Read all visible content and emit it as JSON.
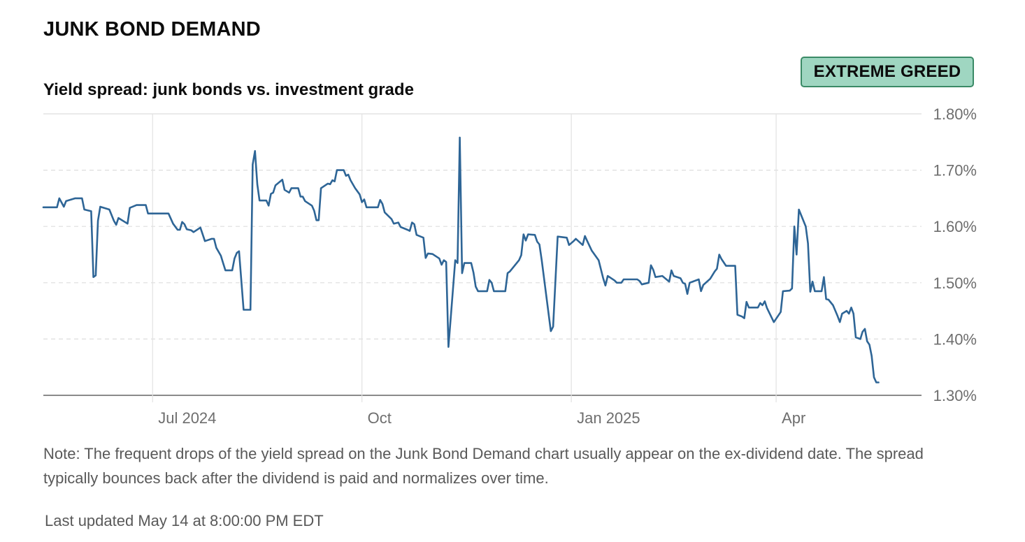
{
  "header": {
    "title": "JUNK BOND DEMAND",
    "badge": "EXTREME GREED",
    "subtitle": "Yield spread: junk bonds vs. investment grade"
  },
  "footer": {
    "note": "Note: The frequent drops of the yield spread on the Junk Bond Demand chart usually appear on the ex-dividend date. The spread typically bounces back after the dividend is paid and normalizes over time.",
    "updated": "Last updated May 14 at 8:00:00 PM EDT"
  },
  "colors": {
    "line": "#2e6596",
    "badge_bg": "#9fd6c1",
    "badge_border": "#3a8a66"
  },
  "chart_data": {
    "type": "line",
    "title": "Yield spread: junk bonds vs. investment grade",
    "x_range": [
      "2024-05-14",
      "2025-05-14"
    ],
    "ylim": [
      1.3,
      1.8
    ],
    "y_ticks": [
      {
        "value": 1.8,
        "label": "1.80%"
      },
      {
        "value": 1.7,
        "label": "1.70%"
      },
      {
        "value": 1.6,
        "label": "1.60%"
      },
      {
        "value": 1.5,
        "label": "1.50%"
      },
      {
        "value": 1.4,
        "label": "1.40%"
      },
      {
        "value": 1.3,
        "label": "1.30%"
      }
    ],
    "x_ticks": [
      {
        "date": "2024-07-01",
        "label": "Jul 2024"
      },
      {
        "date": "2024-10-01",
        "label": "Oct"
      },
      {
        "date": "2025-01-01",
        "label": "Jan 2025"
      },
      {
        "date": "2025-04-01",
        "label": "Apr"
      }
    ],
    "grid": true,
    "series": [
      {
        "points": [
          [
            "2024-05-14",
            1.634
          ],
          [
            "2024-05-20",
            1.634
          ],
          [
            "2024-05-21",
            1.65
          ],
          [
            "2024-05-23",
            1.635
          ],
          [
            "2024-05-24",
            1.645
          ],
          [
            "2024-05-28",
            1.65
          ],
          [
            "2024-05-31",
            1.65
          ],
          [
            "2024-06-01",
            1.63
          ],
          [
            "2024-06-04",
            1.627
          ],
          [
            "2024-06-05",
            1.51
          ],
          [
            "2024-06-06",
            1.513
          ],
          [
            "2024-06-07",
            1.61
          ],
          [
            "2024-06-08",
            1.635
          ],
          [
            "2024-06-12",
            1.63
          ],
          [
            "2024-06-14",
            1.61
          ],
          [
            "2024-06-15",
            1.603
          ],
          [
            "2024-06-16",
            1.615
          ],
          [
            "2024-06-20",
            1.605
          ],
          [
            "2024-06-21",
            1.633
          ],
          [
            "2024-06-24",
            1.638
          ],
          [
            "2024-06-28",
            1.638
          ],
          [
            "2024-06-29",
            1.623
          ],
          [
            "2024-07-05",
            1.623
          ],
          [
            "2024-07-08",
            1.623
          ],
          [
            "2024-07-10",
            1.605
          ],
          [
            "2024-07-12",
            1.594
          ],
          [
            "2024-07-13",
            1.594
          ],
          [
            "2024-07-14",
            1.608
          ],
          [
            "2024-07-15",
            1.604
          ],
          [
            "2024-07-16",
            1.595
          ],
          [
            "2024-07-18",
            1.593
          ],
          [
            "2024-07-19",
            1.59
          ],
          [
            "2024-07-22",
            1.598
          ],
          [
            "2024-07-24",
            1.574
          ],
          [
            "2024-07-27",
            1.578
          ],
          [
            "2024-07-28",
            1.578
          ],
          [
            "2024-07-29",
            1.562
          ],
          [
            "2024-07-31",
            1.548
          ],
          [
            "2024-08-01",
            1.535
          ],
          [
            "2024-08-02",
            1.522
          ],
          [
            "2024-08-05",
            1.522
          ],
          [
            "2024-08-06",
            1.543
          ],
          [
            "2024-08-07",
            1.553
          ],
          [
            "2024-08-08",
            1.556
          ],
          [
            "2024-08-10",
            1.452
          ],
          [
            "2024-08-13",
            1.452
          ],
          [
            "2024-08-14",
            1.71
          ],
          [
            "2024-08-15",
            1.734
          ],
          [
            "2024-08-16",
            1.675
          ],
          [
            "2024-08-17",
            1.646
          ],
          [
            "2024-08-20",
            1.646
          ],
          [
            "2024-08-21",
            1.637
          ],
          [
            "2024-08-22",
            1.658
          ],
          [
            "2024-08-23",
            1.66
          ],
          [
            "2024-08-24",
            1.673
          ],
          [
            "2024-08-27",
            1.683
          ],
          [
            "2024-08-28",
            1.665
          ],
          [
            "2024-08-30",
            1.66
          ],
          [
            "2024-08-31",
            1.668
          ],
          [
            "2024-09-03",
            1.668
          ],
          [
            "2024-09-04",
            1.653
          ],
          [
            "2024-09-05",
            1.653
          ],
          [
            "2024-09-06",
            1.645
          ],
          [
            "2024-09-09",
            1.637
          ],
          [
            "2024-09-10",
            1.628
          ],
          [
            "2024-09-11",
            1.611
          ],
          [
            "2024-09-12",
            1.611
          ],
          [
            "2024-09-13",
            1.668
          ],
          [
            "2024-09-16",
            1.676
          ],
          [
            "2024-09-17",
            1.675
          ],
          [
            "2024-09-18",
            1.682
          ],
          [
            "2024-09-19",
            1.68
          ],
          [
            "2024-09-20",
            1.7
          ],
          [
            "2024-09-23",
            1.7
          ],
          [
            "2024-09-24",
            1.69
          ],
          [
            "2024-09-25",
            1.692
          ],
          [
            "2024-09-26",
            1.682
          ],
          [
            "2024-09-28",
            1.668
          ],
          [
            "2024-09-30",
            1.657
          ],
          [
            "2024-10-01",
            1.643
          ],
          [
            "2024-10-02",
            1.648
          ],
          [
            "2024-10-03",
            1.634
          ],
          [
            "2024-10-08",
            1.634
          ],
          [
            "2024-10-09",
            1.647
          ],
          [
            "2024-10-10",
            1.64
          ],
          [
            "2024-10-11",
            1.625
          ],
          [
            "2024-10-14",
            1.613
          ],
          [
            "2024-10-15",
            1.605
          ],
          [
            "2024-10-17",
            1.607
          ],
          [
            "2024-10-18",
            1.599
          ],
          [
            "2024-10-21",
            1.594
          ],
          [
            "2024-10-22",
            1.592
          ],
          [
            "2024-10-23",
            1.607
          ],
          [
            "2024-10-24",
            1.604
          ],
          [
            "2024-10-25",
            1.585
          ],
          [
            "2024-10-28",
            1.58
          ],
          [
            "2024-10-29",
            1.544
          ],
          [
            "2024-10-30",
            1.552
          ],
          [
            "2024-11-01",
            1.551
          ],
          [
            "2024-11-04",
            1.543
          ],
          [
            "2024-11-05",
            1.532
          ],
          [
            "2024-11-06",
            1.54
          ],
          [
            "2024-11-07",
            1.537
          ],
          [
            "2024-11-08",
            1.386
          ],
          [
            "2024-11-11",
            1.54
          ],
          [
            "2024-11-12",
            1.535
          ],
          [
            "2024-11-13",
            1.758
          ],
          [
            "2024-11-14",
            1.517
          ],
          [
            "2024-11-15",
            1.535
          ],
          [
            "2024-11-18",
            1.535
          ],
          [
            "2024-11-19",
            1.518
          ],
          [
            "2024-11-20",
            1.493
          ],
          [
            "2024-11-21",
            1.485
          ],
          [
            "2024-11-25",
            1.485
          ],
          [
            "2024-11-26",
            1.505
          ],
          [
            "2024-11-27",
            1.5
          ],
          [
            "2024-11-28",
            1.485
          ],
          [
            "2024-12-02",
            1.485
          ],
          [
            "2024-12-03",
            1.485
          ],
          [
            "2024-12-04",
            1.517
          ],
          [
            "2024-12-05",
            1.52
          ],
          [
            "2024-12-09",
            1.54
          ],
          [
            "2024-12-10",
            1.549
          ],
          [
            "2024-12-11",
            1.586
          ],
          [
            "2024-12-12",
            1.575
          ],
          [
            "2024-12-13",
            1.586
          ],
          [
            "2024-12-16",
            1.585
          ],
          [
            "2024-12-17",
            1.573
          ],
          [
            "2024-12-18",
            1.568
          ],
          [
            "2024-12-19",
            1.54
          ],
          [
            "2024-12-23",
            1.414
          ],
          [
            "2024-12-24",
            1.422
          ],
          [
            "2024-12-26",
            1.582
          ],
          [
            "2024-12-30",
            1.58
          ],
          [
            "2024-12-31",
            1.567
          ],
          [
            "2025-01-02",
            1.574
          ],
          [
            "2025-01-03",
            1.578
          ],
          [
            "2025-01-06",
            1.567
          ],
          [
            "2025-01-07",
            1.583
          ],
          [
            "2025-01-08",
            1.574
          ],
          [
            "2025-01-10",
            1.557
          ],
          [
            "2025-01-13",
            1.54
          ],
          [
            "2025-01-15",
            1.508
          ],
          [
            "2025-01-16",
            1.495
          ],
          [
            "2025-01-17",
            1.512
          ],
          [
            "2025-01-20",
            1.504
          ],
          [
            "2025-01-21",
            1.5
          ],
          [
            "2025-01-23",
            1.5
          ],
          [
            "2025-01-24",
            1.506
          ],
          [
            "2025-01-30",
            1.506
          ],
          [
            "2025-01-31",
            1.503
          ],
          [
            "2025-02-01",
            1.497
          ],
          [
            "2025-02-04",
            1.5
          ],
          [
            "2025-02-05",
            1.531
          ],
          [
            "2025-02-06",
            1.523
          ],
          [
            "2025-02-07",
            1.51
          ],
          [
            "2025-02-10",
            1.512
          ],
          [
            "2025-02-13",
            1.502
          ],
          [
            "2025-02-14",
            1.522
          ],
          [
            "2025-02-15",
            1.512
          ],
          [
            "2025-02-18",
            1.508
          ],
          [
            "2025-02-19",
            1.5
          ],
          [
            "2025-02-20",
            1.498
          ],
          [
            "2025-02-21",
            1.48
          ],
          [
            "2025-02-22",
            1.5
          ],
          [
            "2025-02-26",
            1.506
          ],
          [
            "2025-02-27",
            1.485
          ],
          [
            "2025-02-28",
            1.496
          ],
          [
            "2025-03-03",
            1.507
          ],
          [
            "2025-03-05",
            1.52
          ],
          [
            "2025-03-06",
            1.525
          ],
          [
            "2025-03-07",
            1.55
          ],
          [
            "2025-03-08",
            1.542
          ],
          [
            "2025-03-10",
            1.53
          ],
          [
            "2025-03-14",
            1.53
          ],
          [
            "2025-03-15",
            1.443
          ],
          [
            "2025-03-17",
            1.44
          ],
          [
            "2025-03-18",
            1.437
          ],
          [
            "2025-03-19",
            1.466
          ],
          [
            "2025-03-20",
            1.456
          ],
          [
            "2025-03-24",
            1.456
          ],
          [
            "2025-03-25",
            1.464
          ],
          [
            "2025-03-26",
            1.46
          ],
          [
            "2025-03-27",
            1.467
          ],
          [
            "2025-03-28",
            1.455
          ],
          [
            "2025-03-31",
            1.43
          ],
          [
            "2025-04-03",
            1.448
          ],
          [
            "2025-04-04",
            1.485
          ],
          [
            "2025-04-07",
            1.486
          ],
          [
            "2025-04-08",
            1.49
          ],
          [
            "2025-04-09",
            1.6
          ],
          [
            "2025-04-10",
            1.55
          ],
          [
            "2025-04-11",
            1.63
          ],
          [
            "2025-04-14",
            1.6
          ],
          [
            "2025-04-15",
            1.57
          ],
          [
            "2025-04-16",
            1.484
          ],
          [
            "2025-04-17",
            1.502
          ],
          [
            "2025-04-18",
            1.485
          ],
          [
            "2025-04-21",
            1.485
          ],
          [
            "2025-04-22",
            1.51
          ],
          [
            "2025-04-23",
            1.471
          ],
          [
            "2025-04-24",
            1.47
          ],
          [
            "2025-04-26",
            1.46
          ],
          [
            "2025-04-28",
            1.441
          ],
          [
            "2025-04-29",
            1.43
          ],
          [
            "2025-04-30",
            1.445
          ],
          [
            "2025-05-02",
            1.45
          ],
          [
            "2025-05-03",
            1.445
          ],
          [
            "2025-05-04",
            1.456
          ],
          [
            "2025-05-05",
            1.445
          ],
          [
            "2025-05-06",
            1.403
          ],
          [
            "2025-05-08",
            1.4
          ],
          [
            "2025-05-09",
            1.413
          ],
          [
            "2025-05-10",
            1.418
          ],
          [
            "2025-05-11",
            1.396
          ],
          [
            "2025-05-12",
            1.39
          ],
          [
            "2025-05-13",
            1.37
          ],
          [
            "2025-05-14",
            1.332
          ],
          [
            "2025-05-15",
            1.323
          ],
          [
            "2025-05-16",
            1.323
          ]
        ]
      }
    ]
  }
}
